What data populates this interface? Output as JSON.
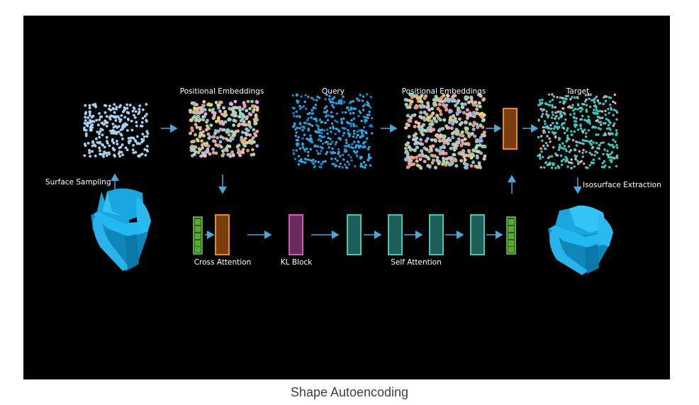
{
  "diagram": {
    "labels": {
      "positional_embeddings_1": "Positional Embeddings",
      "query": "Query",
      "positional_embeddings_2": "Positional Embeddings",
      "target": "Target",
      "surface_sampling": "Surface Sampling",
      "isosurface_extraction": "Isosurface Extraction",
      "cross_attention": "Cross Attention",
      "kl_block": "KL Block",
      "self_attention": "Self Attention"
    },
    "colors": {
      "background": "#000000",
      "arrow": "#4aa8d8",
      "orange_block": "#f0882a",
      "orange_fill": "#7a3d10",
      "magenta_block": "#d45ab8",
      "magenta_fill": "#6a2a5e",
      "teal_block": "#48c8b4",
      "teal_fill": "#1f5e58",
      "green_block": "#7ec850",
      "green_fill": "#2f5a22",
      "chair": "#1eb4f0",
      "point_surface": "#a8d2f0",
      "point_query": "#2aa8e8",
      "point_target": "#3ac8c0"
    }
  },
  "caption": "Shape Autoencoding"
}
